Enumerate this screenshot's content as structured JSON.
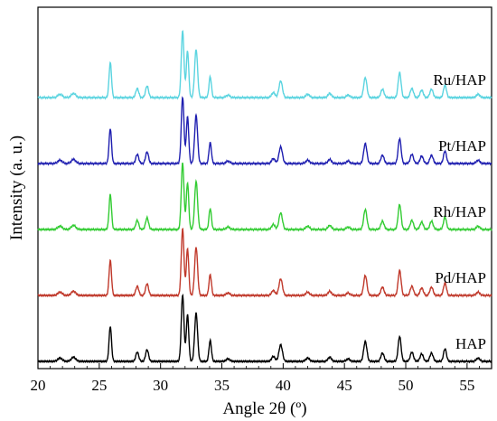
{
  "chart_data": {
    "type": "line",
    "xlabel": "Angle 2θ (º)",
    "ylabel": "Intensity (a. u.)",
    "xlim": [
      20,
      57
    ],
    "x_ticks": [
      20,
      25,
      30,
      35,
      40,
      45,
      50,
      55
    ],
    "y_ticks_shown": false,
    "grid": false,
    "legend": "none",
    "peaks": [
      {
        "x": 21.8,
        "h": 0.04,
        "w": 0.18
      },
      {
        "x": 22.9,
        "h": 0.05,
        "w": 0.18
      },
      {
        "x": 25.9,
        "h": 0.42,
        "w": 0.1
      },
      {
        "x": 28.1,
        "h": 0.11,
        "w": 0.12
      },
      {
        "x": 28.9,
        "h": 0.14,
        "w": 0.12
      },
      {
        "x": 31.8,
        "h": 0.8,
        "w": 0.11
      },
      {
        "x": 32.2,
        "h": 0.56,
        "w": 0.1
      },
      {
        "x": 32.9,
        "h": 0.58,
        "w": 0.12
      },
      {
        "x": 34.05,
        "h": 0.25,
        "w": 0.1
      },
      {
        "x": 35.5,
        "h": 0.03,
        "w": 0.15
      },
      {
        "x": 39.2,
        "h": 0.06,
        "w": 0.14
      },
      {
        "x": 39.8,
        "h": 0.2,
        "w": 0.14
      },
      {
        "x": 42.0,
        "h": 0.04,
        "w": 0.15
      },
      {
        "x": 43.8,
        "h": 0.05,
        "w": 0.14
      },
      {
        "x": 45.3,
        "h": 0.03,
        "w": 0.14
      },
      {
        "x": 46.7,
        "h": 0.24,
        "w": 0.13
      },
      {
        "x": 48.1,
        "h": 0.1,
        "w": 0.13
      },
      {
        "x": 49.5,
        "h": 0.3,
        "w": 0.12
      },
      {
        "x": 50.5,
        "h": 0.11,
        "w": 0.13
      },
      {
        "x": 51.3,
        "h": 0.09,
        "w": 0.13
      },
      {
        "x": 52.1,
        "h": 0.1,
        "w": 0.13
      },
      {
        "x": 53.2,
        "h": 0.15,
        "w": 0.12
      },
      {
        "x": 55.9,
        "h": 0.04,
        "w": 0.14
      }
    ],
    "series": [
      {
        "name": "HAP",
        "color": "#000000",
        "offset": 0
      },
      {
        "name": "Pd/HAP",
        "color": "#c0392b",
        "offset": 1
      },
      {
        "name": "Rh/HAP",
        "color": "#33cc33",
        "offset": 2
      },
      {
        "name": "Pt/HAP",
        "color": "#1f1fb0",
        "offset": 3
      },
      {
        "name": "Ru/HAP",
        "color": "#5bd4e0",
        "offset": 4
      }
    ]
  }
}
